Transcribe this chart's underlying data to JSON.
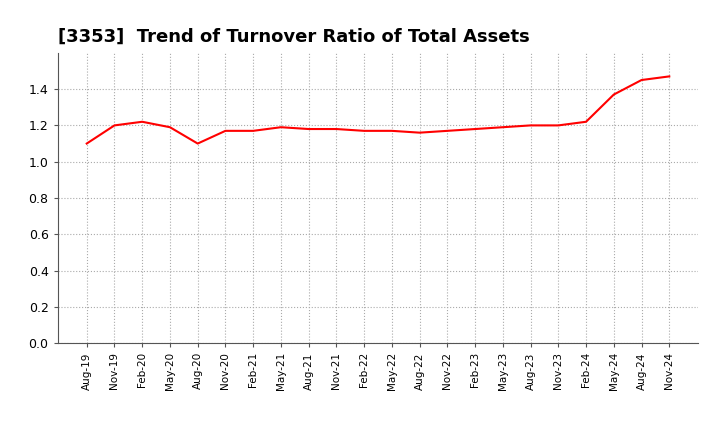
{
  "title": "[3353]  Trend of Turnover Ratio of Total Assets",
  "title_fontsize": 13,
  "line_color": "#FF0000",
  "line_width": 1.5,
  "background_color": "#FFFFFF",
  "grid_color": "#AAAAAA",
  "ylim": [
    0.0,
    1.6
  ],
  "yticks": [
    0.0,
    0.2,
    0.4,
    0.6,
    0.8,
    1.0,
    1.2,
    1.4
  ],
  "x_labels": [
    "Aug-19",
    "Nov-19",
    "Feb-20",
    "May-20",
    "Aug-20",
    "Nov-20",
    "Feb-21",
    "May-21",
    "Aug-21",
    "Nov-21",
    "Feb-22",
    "May-22",
    "Aug-22",
    "Nov-22",
    "Feb-23",
    "May-23",
    "Aug-23",
    "Nov-23",
    "Feb-24",
    "May-24",
    "Aug-24",
    "Nov-24"
  ],
  "values": [
    1.1,
    1.2,
    1.22,
    1.19,
    1.1,
    1.17,
    1.17,
    1.19,
    1.18,
    1.18,
    1.17,
    1.17,
    1.16,
    1.17,
    1.18,
    1.19,
    1.2,
    1.2,
    1.22,
    1.37,
    1.45,
    1.47
  ]
}
